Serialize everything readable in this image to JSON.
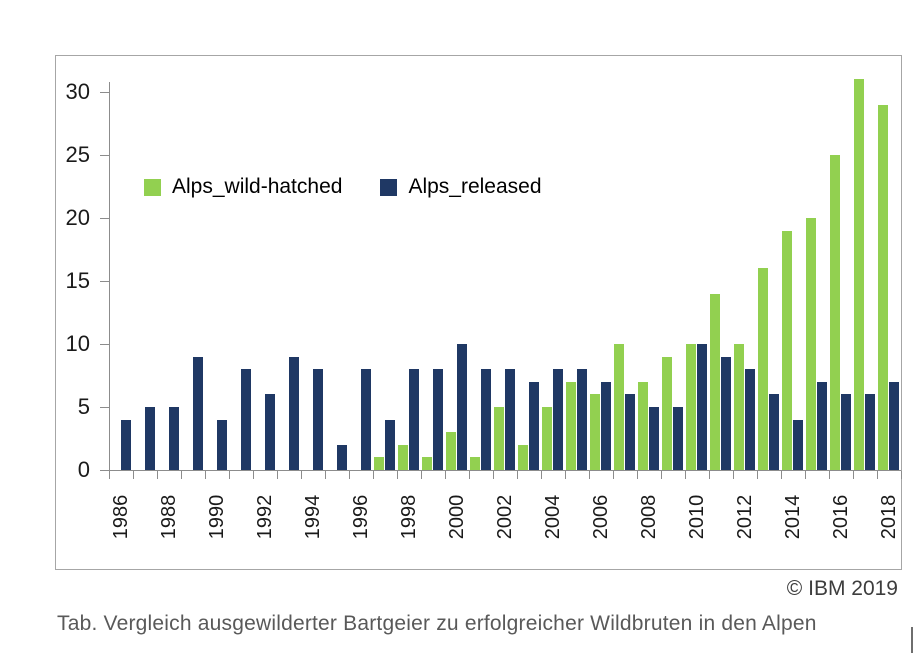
{
  "chart_data": {
    "type": "bar",
    "title": "",
    "xlabel": "",
    "ylabel": "",
    "categories": [
      1986,
      1987,
      1988,
      1989,
      1990,
      1991,
      1992,
      1993,
      1994,
      1995,
      1996,
      1997,
      1998,
      1999,
      2000,
      2001,
      2002,
      2003,
      2004,
      2005,
      2006,
      2007,
      2008,
      2009,
      2010,
      2011,
      2012,
      2013,
      2014,
      2015,
      2016,
      2017,
      2018
    ],
    "series": [
      {
        "name": "Alps_wild-hatched",
        "color": "#92d050",
        "values": [
          0,
          0,
          0,
          0,
          0,
          0,
          0,
          0,
          0,
          0,
          0,
          1,
          2,
          1,
          3,
          1,
          5,
          2,
          5,
          7,
          6,
          10,
          7,
          9,
          10,
          14,
          10,
          16,
          19,
          20,
          25,
          31,
          29
        ]
      },
      {
        "name": "Alps_released",
        "color": "#1f3864",
        "values": [
          4,
          5,
          5,
          9,
          4,
          8,
          6,
          9,
          8,
          2,
          8,
          4,
          8,
          8,
          10,
          8,
          8,
          7,
          8,
          8,
          7,
          6,
          5,
          5,
          10,
          9,
          8,
          6,
          4,
          7,
          6,
          6,
          7
        ]
      }
    ],
    "ylim": [
      0,
      30
    ],
    "yticks": [
      0,
      5,
      10,
      15,
      20,
      25,
      30
    ],
    "xtick_label_every": 2,
    "grid": false,
    "legend_position": "inside-top-left",
    "axis_color": "#8c8c8c",
    "frame_color": "#a6a6a6"
  },
  "footer": {
    "copyright": "© IBM 2019",
    "caption": "Tab. Vergleich ausgewilderter Bartgeier zu erfolgreicher Wildbruten in den Alpen"
  }
}
